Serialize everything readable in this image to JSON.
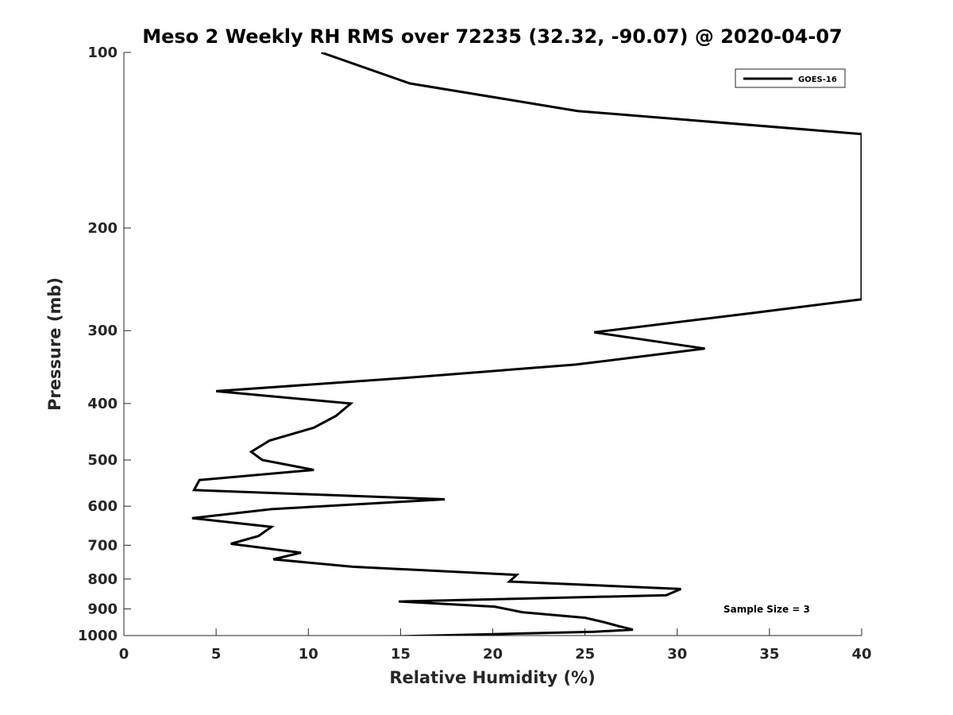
{
  "chart_data": {
    "type": "line",
    "title": "Meso 2 Weekly RH RMS over 72235 (32.32, -90.07) @ 2020-04-07",
    "xlabel": "Relative Humidity (%)",
    "ylabel": "Pressure (mb)",
    "xlim": [
      0,
      40
    ],
    "ylim": [
      100,
      1000
    ],
    "yscale": "log",
    "y_reversed": true,
    "grid": false,
    "x_ticks": [
      0,
      5,
      10,
      15,
      20,
      25,
      30,
      35,
      40
    ],
    "y_ticks": [
      100,
      200,
      300,
      400,
      500,
      600,
      700,
      800,
      900,
      1000
    ],
    "legend": {
      "placement": "top-right",
      "entries": [
        "GOES-16"
      ]
    },
    "annotation": "Sample Size = 3",
    "series": [
      {
        "name": "GOES-16",
        "color": "#000000",
        "x": [
          10.7,
          15.5,
          24.6,
          40.0,
          40.0,
          34.0,
          25.5,
          31.5,
          24.5,
          15.0,
          5.0,
          12.3,
          11.5,
          10.3,
          7.9,
          6.9,
          7.5,
          10.3,
          4.1,
          3.8,
          17.4,
          8.0,
          3.7,
          8.0,
          7.3,
          5.8,
          9.6,
          8.1,
          12.4,
          21.3,
          20.9,
          30.2,
          29.4,
          14.9,
          20.1,
          21.6,
          25.0,
          26.0,
          26.8,
          27.6,
          25.5,
          13.8
        ],
        "y": [
          100,
          113,
          126,
          138,
          265,
          280,
          302,
          322,
          343,
          362,
          381,
          400,
          420,
          440,
          463,
          484,
          500,
          520,
          541,
          563,
          584,
          607,
          629,
          651,
          675,
          696,
          721,
          740,
          762,
          787,
          808,
          832,
          853,
          874,
          892,
          912,
          932,
          948,
          963,
          977,
          985,
          1005
        ]
      }
    ]
  }
}
